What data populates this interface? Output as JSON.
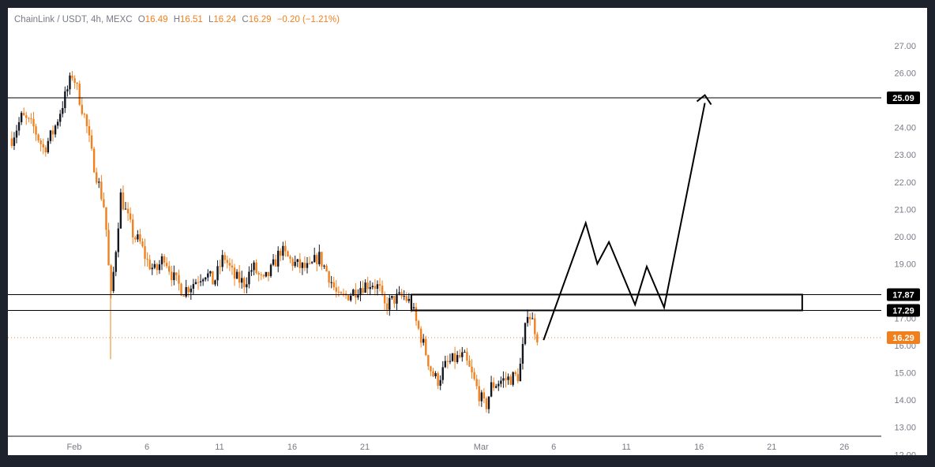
{
  "legend": {
    "symbol": "ChainLink / USDT, 4h, MEXC",
    "open_label": "O",
    "open": "16.49",
    "high_label": "H",
    "high": "16.51",
    "low_label": "L",
    "low": "16.24",
    "close_label": "C",
    "close": "16.29",
    "change": "−0.20 (−1.21%)"
  },
  "colors": {
    "up": "#131722",
    "down": "#f0801e",
    "current_price": "#f0801e",
    "level_badge": "#000000",
    "grid_text": "#787b86"
  },
  "chart_data": {
    "type": "candlestick",
    "title": "ChainLink / USDT, 4h, MEXC",
    "ylim": [
      11.7,
      27.4
    ],
    "y_ticks": [
      "12.00",
      "13.00",
      "14.00",
      "15.00",
      "16.00",
      "17.00",
      "18.00",
      "19.00",
      "20.00",
      "21.00",
      "22.00",
      "23.00",
      "24.00",
      "25.00",
      "26.00",
      "27.00"
    ],
    "x_ticks": [
      {
        "label": "Feb",
        "day": 0
      },
      {
        "label": "6",
        "day": 5
      },
      {
        "label": "11",
        "day": 10
      },
      {
        "label": "16",
        "day": 15
      },
      {
        "label": "21",
        "day": 20
      },
      {
        "label": "Mar",
        "day": 28
      },
      {
        "label": "6",
        "day": 33
      },
      {
        "label": "11",
        "day": 38
      },
      {
        "label": "16",
        "day": 43
      },
      {
        "label": "21",
        "day": 48
      },
      {
        "label": "26",
        "day": 53
      }
    ],
    "xlim_days": [
      -4.3,
      55.5
    ],
    "candle_anchors": [
      {
        "day": -4.3,
        "price": 23.6
      },
      {
        "day": -3.6,
        "price": 24.4
      },
      {
        "day": -2.8,
        "price": 24.0
      },
      {
        "day": -2.1,
        "price": 23.2
      },
      {
        "day": -1.4,
        "price": 23.9
      },
      {
        "day": -0.9,
        "price": 24.7
      },
      {
        "day": -0.4,
        "price": 25.5
      },
      {
        "day": -0.1,
        "price": 26.0
      },
      {
        "day": 0.3,
        "price": 25.2
      },
      {
        "day": 0.8,
        "price": 24.2
      },
      {
        "day": 1.2,
        "price": 23.0
      },
      {
        "day": 1.6,
        "price": 22.1
      },
      {
        "day": 2.1,
        "price": 21.0
      },
      {
        "day": 2.3,
        "price": 19.5
      },
      {
        "day": 2.5,
        "price": 17.6
      },
      {
        "day": 2.8,
        "price": 19.2
      },
      {
        "day": 3.2,
        "price": 21.5
      },
      {
        "day": 3.6,
        "price": 20.8
      },
      {
        "day": 4.1,
        "price": 20.0
      },
      {
        "day": 4.5,
        "price": 19.8
      },
      {
        "day": 5.0,
        "price": 19.1
      },
      {
        "day": 5.6,
        "price": 18.7
      },
      {
        "day": 6.2,
        "price": 19.3
      },
      {
        "day": 6.8,
        "price": 18.5
      },
      {
        "day": 7.5,
        "price": 18.0
      },
      {
        "day": 8.2,
        "price": 18.3
      },
      {
        "day": 9.0,
        "price": 18.7
      },
      {
        "day": 9.6,
        "price": 18.3
      },
      {
        "day": 10.3,
        "price": 19.3
      },
      {
        "day": 11.0,
        "price": 18.5
      },
      {
        "day": 11.7,
        "price": 18.3
      },
      {
        "day": 12.3,
        "price": 18.9
      },
      {
        "day": 13.0,
        "price": 18.3
      },
      {
        "day": 13.6,
        "price": 18.8
      },
      {
        "day": 14.2,
        "price": 19.5
      },
      {
        "day": 14.9,
        "price": 19.1
      },
      {
        "day": 15.5,
        "price": 18.9
      },
      {
        "day": 16.2,
        "price": 18.8
      },
      {
        "day": 16.8,
        "price": 19.3
      },
      {
        "day": 17.5,
        "price": 18.6
      },
      {
        "day": 18.2,
        "price": 17.7
      },
      {
        "day": 19.0,
        "price": 17.9
      },
      {
        "day": 19.8,
        "price": 18.2
      },
      {
        "day": 20.5,
        "price": 18.3
      },
      {
        "day": 21.0,
        "price": 18.1
      },
      {
        "day": 21.3,
        "price": 17.4
      },
      {
        "day": 22.0,
        "price": 17.7
      },
      {
        "day": 22.7,
        "price": 17.8
      },
      {
        "day": 23.2,
        "price": 17.5
      },
      {
        "day": 23.5,
        "price": 16.9
      },
      {
        "day": 24.0,
        "price": 16.1
      },
      {
        "day": 24.6,
        "price": 15.0
      },
      {
        "day": 25.0,
        "price": 14.7
      },
      {
        "day": 25.6,
        "price": 15.3
      },
      {
        "day": 26.2,
        "price": 15.5
      },
      {
        "day": 26.8,
        "price": 15.6
      },
      {
        "day": 27.3,
        "price": 15.0
      },
      {
        "day": 27.8,
        "price": 14.3
      },
      {
        "day": 28.3,
        "price": 13.7
      },
      {
        "day": 28.7,
        "price": 14.5
      },
      {
        "day": 29.3,
        "price": 14.7
      },
      {
        "day": 30.0,
        "price": 14.8
      },
      {
        "day": 30.6,
        "price": 14.9
      },
      {
        "day": 30.9,
        "price": 16.0
      },
      {
        "day": 31.2,
        "price": 17.3
      },
      {
        "day": 31.6,
        "price": 16.8
      },
      {
        "day": 31.9,
        "price": 16.29
      }
    ],
    "levels": [
      {
        "price": 25.09,
        "label": "25.09"
      },
      {
        "price": 17.87,
        "label": "17.87"
      },
      {
        "price": 17.29,
        "label": "17.29"
      }
    ],
    "current_price": {
      "price": 16.29,
      "label": "16.29"
    },
    "zone": {
      "day_start": 23.2,
      "day_end": 50.1,
      "price_top": 17.87,
      "price_bottom": 17.29
    },
    "projection": [
      {
        "day": 32.3,
        "price": 16.2
      },
      {
        "day": 35.2,
        "price": 20.5
      },
      {
        "day": 36.0,
        "price": 19.0
      },
      {
        "day": 36.8,
        "price": 19.8
      },
      {
        "day": 38.6,
        "price": 17.5
      },
      {
        "day": 39.4,
        "price": 18.9
      },
      {
        "day": 40.6,
        "price": 17.4
      },
      {
        "day": 43.4,
        "price": 24.9
      }
    ],
    "arrow_tip": {
      "day": 43.4,
      "price": 24.9
    }
  }
}
